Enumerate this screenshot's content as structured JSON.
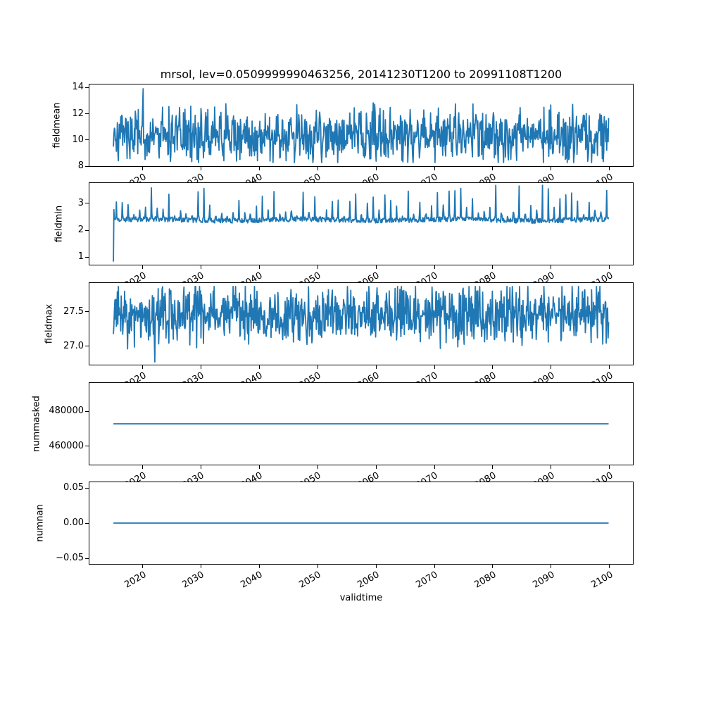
{
  "figure": {
    "title": "mrsol, lev=0.0509999990463256, 20141230T1200 to 20991108T1200",
    "xlabel": "validtime",
    "background_color": "#ffffff",
    "line_color": "#1f77b4",
    "spine_color": "#000000",
    "text_color": "#000000"
  },
  "chart_data": {
    "type": "line",
    "title": "mrsol, lev=0.0509999990463256, 20141230T1200 to 20991108T1200",
    "xlabel": "validtime",
    "grid": false,
    "legend": "none",
    "n_subplots": 5,
    "x_axis": {
      "ticks": [
        2020,
        2030,
        2040,
        2050,
        2060,
        2070,
        2080,
        2090,
        2100
      ],
      "tick_labels": [
        "2020",
        "2030",
        "2040",
        "2050",
        "2060",
        "2070",
        "2080",
        "2090",
        "2100"
      ],
      "tick_rotation_deg": 30,
      "xlim": [
        2010.76,
        2104.14
      ],
      "data_start": 2015.0,
      "data_end": 2099.86,
      "n_points": 1019
    },
    "panels": [
      {
        "ylabel": "fieldmean",
        "yticks": [
          8,
          10,
          12,
          14
        ],
        "ytick_labels": [
          "8",
          "10",
          "12",
          "14"
        ],
        "ylim": [
          7.95,
          14.28
        ],
        "stats": {
          "mean": 10.4,
          "min": 8.3,
          "max": 13.9
        },
        "gen": {
          "kind": "noisy",
          "seed": 7,
          "base": 10.35,
          "seasonal_amp": 0.5,
          "noise_amp": 1.9,
          "spike_prob": 0.015,
          "spike_amp": 1.3,
          "clip": [
            8.28,
            13.92
          ],
          "overrides": []
        }
      },
      {
        "ylabel": "fieldmin",
        "yticks": [
          1,
          2,
          3
        ],
        "ytick_labels": [
          "1",
          "2",
          "3"
        ],
        "ylim": [
          0.7,
          3.77
        ],
        "stats": {
          "baseline": 2.4,
          "min": 0.84,
          "max": 3.66
        },
        "gen": {
          "kind": "spiky",
          "seed": 11,
          "base": 2.38,
          "jitter": 0.09,
          "spike_amp": 1.25,
          "clip": [
            0.72,
            3.66
          ],
          "overrides": [
            [
              0,
              0.84
            ],
            [
              1,
              2.76
            ]
          ]
        }
      },
      {
        "ylabel": "fieldmax",
        "yticks": [
          27.0,
          27.5
        ],
        "ytick_labels": [
          "27.0",
          "27.5"
        ],
        "ylim": [
          26.72,
          27.93
        ],
        "stats": {
          "mean": 27.45,
          "min": 26.77,
          "max": 27.87
        },
        "gen": {
          "kind": "noisy",
          "seed": 23,
          "base": 27.46,
          "seasonal_amp": 0.05,
          "noise_amp": 0.4,
          "spike_prob": 0.004,
          "spike_amp": 0.25,
          "clip": [
            26.96,
            27.87
          ],
          "overrides": [
            [
              84,
              27.12
            ],
            [
              85,
              26.77
            ]
          ]
        }
      },
      {
        "ylabel": "nummasked",
        "yticks": [
          460000,
          480000
        ],
        "ytick_labels": [
          "460000",
          "480000"
        ],
        "ylim": [
          449160,
          496440
        ],
        "stats": {
          "constant": 472800
        },
        "gen": {
          "kind": "constant",
          "value": 472800
        }
      },
      {
        "ylabel": "numnan",
        "yticks": [
          -0.05,
          0.0,
          0.05
        ],
        "ytick_labels": [
          "−0.05",
          "0.00",
          "0.05"
        ],
        "ylim": [
          -0.059,
          0.059
        ],
        "stats": {
          "constant": 0
        },
        "gen": {
          "kind": "constant",
          "value": 0
        }
      }
    ]
  }
}
